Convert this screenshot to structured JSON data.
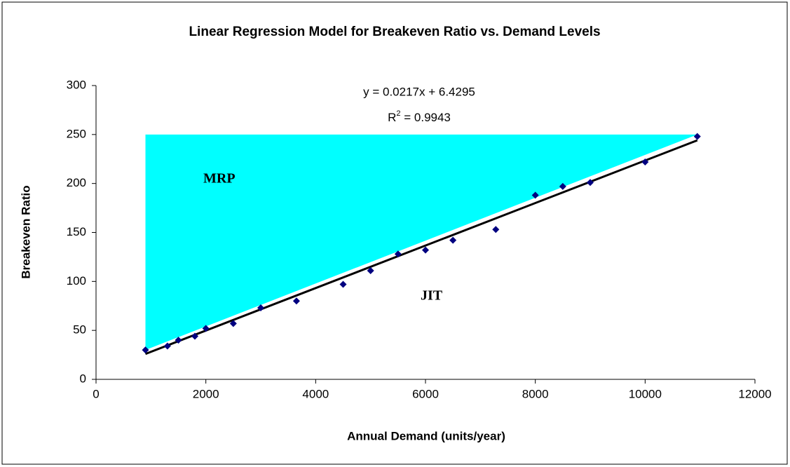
{
  "chart_data": {
    "type": "scatter",
    "title": "Linear Regression Model for Breakeven Ratio vs. Demand Levels",
    "x_label": "Annual Demand (units/year)",
    "y_label": "Breakeven Ratio",
    "series": [
      {
        "color": "#000080",
        "x": [
          900,
          1300,
          1500,
          1800,
          2000,
          2500,
          3000,
          3650,
          4500,
          5000,
          5500,
          6000,
          6500,
          7280,
          8000,
          8500,
          9000,
          10000,
          10950
        ],
        "values": [
          30,
          34,
          40,
          44,
          52,
          57,
          73,
          80,
          97,
          111,
          128,
          132,
          142,
          153,
          188,
          197,
          201,
          222,
          248
        ]
      }
    ],
    "trendline": {
      "slope": 0.0217,
      "intercept": 6.4295,
      "color": "#000000",
      "equation": "y = 0.0217x + 6.4295",
      "r2_label": "R",
      "r2_sup": "2",
      "r2_value": " = 0.9943"
    },
    "region": {
      "x": [
        900,
        10950,
        900
      ],
      "y": [
        250,
        250,
        30
      ],
      "color": "#00ffff"
    },
    "annotations": [
      "MRP",
      "JIT"
    ],
    "xlim": [
      0,
      12000
    ],
    "xticks": [
      0,
      2000,
      4000,
      6000,
      8000,
      10000,
      12000
    ],
    "ylim": [
      0,
      300
    ],
    "yticks": [
      0,
      50,
      100,
      150,
      200,
      250,
      300
    ]
  }
}
